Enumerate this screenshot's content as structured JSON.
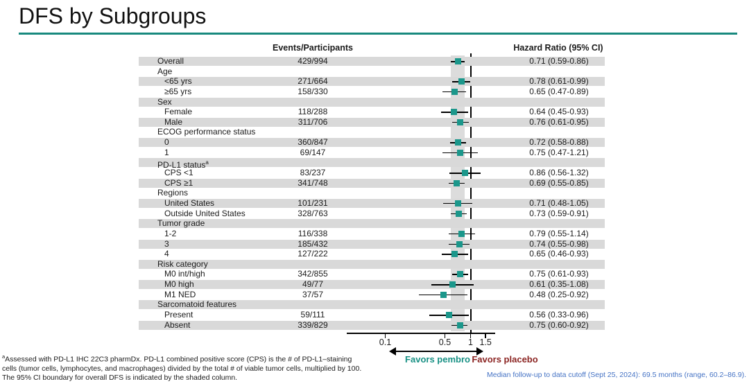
{
  "slide": {
    "title": "DFS by Subgroups",
    "accent_teal": "#18897e",
    "marker_teal": "#1b978b",
    "placebo_maroon": "#8b2422",
    "note_blue": "#4472c4",
    "band_gray": "#d9d9d9"
  },
  "table": {
    "col_events": "Events/Participants",
    "col_hr": "Hazard Ratio (95% CI)"
  },
  "chart_data": {
    "type": "forest",
    "title": "DFS by Subgroups",
    "x_scale": "log",
    "x_ticks": [
      0.1,
      0.5,
      1,
      1.5
    ],
    "x_range": [
      0.1,
      1.5
    ],
    "ref_line": 1,
    "shaded_band_ci": [
      0.59,
      0.86
    ],
    "shaded_band_meaning": "95% CI boundary for overall DFS",
    "favors_left": "Favors pembro",
    "favors_right": "Favors placebo",
    "rows": [
      {
        "label": "Overall",
        "indent": 0,
        "events": "429/994",
        "hr": 0.71,
        "lo": 0.59,
        "hi": 0.86,
        "hr_text": "0.71 (0.59-0.86)"
      },
      {
        "label": "Age",
        "indent": 0,
        "header": true
      },
      {
        "label": "<65 yrs",
        "indent": 1,
        "events": "271/664",
        "hr": 0.78,
        "lo": 0.61,
        "hi": 0.99,
        "hr_text": "0.78 (0.61-0.99)"
      },
      {
        "label": "≥65 yrs",
        "indent": 1,
        "events": "158/330",
        "hr": 0.65,
        "lo": 0.47,
        "hi": 0.89,
        "hr_text": "0.65 (0.47-0.89)"
      },
      {
        "label": "Sex",
        "indent": 0,
        "header": true
      },
      {
        "label": "Female",
        "indent": 1,
        "events": "118/288",
        "hr": 0.64,
        "lo": 0.45,
        "hi": 0.93,
        "hr_text": "0.64 (0.45-0.93)"
      },
      {
        "label": "Male",
        "indent": 1,
        "events": "311/706",
        "hr": 0.76,
        "lo": 0.61,
        "hi": 0.95,
        "hr_text": "0.76 (0.61-0.95)"
      },
      {
        "label": "ECOG performance status",
        "indent": 0,
        "header": true
      },
      {
        "label": "0",
        "indent": 1,
        "events": "360/847",
        "hr": 0.72,
        "lo": 0.58,
        "hi": 0.88,
        "hr_text": "0.72 (0.58-0.88)"
      },
      {
        "label": "1",
        "indent": 1,
        "events": "69/147",
        "hr": 0.75,
        "lo": 0.47,
        "hi": 1.21,
        "hr_text": "0.75 (0.47-1.21)"
      },
      {
        "label": "PD-L1 status",
        "sup": "a",
        "indent": 0,
        "header": true
      },
      {
        "label": "CPS <1",
        "indent": 1,
        "events": "83/237",
        "hr": 0.86,
        "lo": 0.56,
        "hi": 1.32,
        "hr_text": "0.86 (0.56-1.32)"
      },
      {
        "label": "CPS ≥1",
        "indent": 1,
        "events": "341/748",
        "hr": 0.69,
        "lo": 0.55,
        "hi": 0.85,
        "hr_text": "0.69 (0.55-0.85)"
      },
      {
        "label": "Regions",
        "indent": 0,
        "header": true
      },
      {
        "label": "United States",
        "indent": 1,
        "events": "101/231",
        "hr": 0.71,
        "lo": 0.48,
        "hi": 1.05,
        "hr_text": "0.71 (0.48-1.05)"
      },
      {
        "label": "Outside United States",
        "indent": 1,
        "events": "328/763",
        "hr": 0.73,
        "lo": 0.59,
        "hi": 0.91,
        "hr_text": "0.73 (0.59-0.91)"
      },
      {
        "label": "Tumor grade",
        "indent": 0,
        "header": true
      },
      {
        "label": "1-2",
        "indent": 1,
        "events": "116/338",
        "hr": 0.79,
        "lo": 0.55,
        "hi": 1.14,
        "hr_text": "0.79 (0.55-1.14)"
      },
      {
        "label": "3",
        "indent": 1,
        "events": "185/432",
        "hr": 0.74,
        "lo": 0.55,
        "hi": 0.98,
        "hr_text": "0.74 (0.55-0.98)"
      },
      {
        "label": "4",
        "indent": 1,
        "events": "127/222",
        "hr": 0.65,
        "lo": 0.46,
        "hi": 0.93,
        "hr_text": "0.65 (0.46-0.93)"
      },
      {
        "label": "Risk category",
        "indent": 0,
        "header": true
      },
      {
        "label": "M0 int/high",
        "indent": 1,
        "events": "342/855",
        "hr": 0.75,
        "lo": 0.61,
        "hi": 0.93,
        "hr_text": "0.75 (0.61-0.93)"
      },
      {
        "label": "M0 high",
        "indent": 1,
        "events": "49/77",
        "hr": 0.61,
        "lo": 0.35,
        "hi": 1.08,
        "hr_text": "0.61 (0.35-1.08)"
      },
      {
        "label": "M1 NED",
        "indent": 1,
        "events": "37/57",
        "hr": 0.48,
        "lo": 0.25,
        "hi": 0.92,
        "hr_text": "0.48 (0.25-0.92)"
      },
      {
        "label": "Sarcomatoid features",
        "indent": 0,
        "header": true
      },
      {
        "label": "Present",
        "indent": 1,
        "events": "59/111",
        "hr": 0.56,
        "lo": 0.33,
        "hi": 0.96,
        "hr_text": "0.56 (0.33-0.96)"
      },
      {
        "label": "Absent",
        "indent": 1,
        "events": "339/829",
        "hr": 0.75,
        "lo": 0.6,
        "hi": 0.92,
        "hr_text": "0.75 (0.60-0.92)"
      }
    ]
  },
  "favors": {
    "left": "Favors pembro",
    "right": "Favors placebo"
  },
  "footnotes": {
    "sup": "a",
    "line1": "Assessed with PD-L1 IHC 22C3 pharmDx. PD-L1 combined positive score (CPS) is the # of PD-L1–staining",
    "line2": "cells (tumor cells, lymphocytes, and macrophages) divided by the total # of viable tumor cells, multiplied by 100.",
    "line3": "The 95% CI boundary for overall DFS is indicated by the shaded column."
  },
  "median_note": "Median follow-up to data cutoff (Sept 25, 2024): 69.5 months (range, 60.2–86.9)."
}
